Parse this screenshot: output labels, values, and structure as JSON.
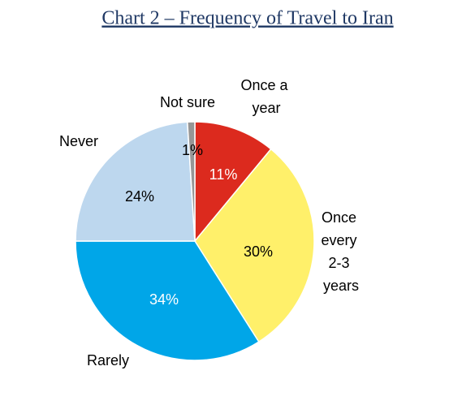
{
  "chart_data": {
    "type": "pie",
    "title": "Chart 2 – Frequency of Travel to Iran",
    "categories": [
      "Once a year",
      "Once every 2-3 years",
      "Rarely",
      "Never",
      "Not sure"
    ],
    "values": [
      11,
      30,
      34,
      24,
      1
    ],
    "value_labels": [
      "11%",
      "30%",
      "34%",
      "24%",
      "1%"
    ],
    "colors": [
      "#dc2a1e",
      "#fff06a",
      "#00a6e8",
      "#bdd7ee",
      "#969696"
    ]
  }
}
